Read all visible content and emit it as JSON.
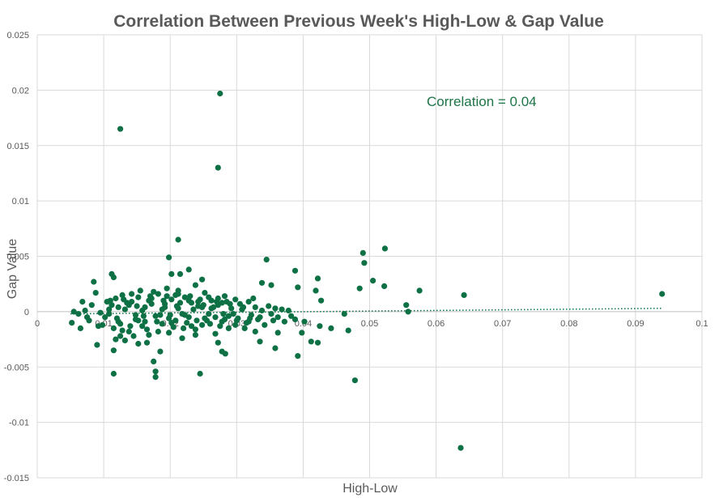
{
  "chart_data": {
    "type": "scatter",
    "title": "Correlation Between Previous Week's High-Low & Gap Value",
    "xlabel": "High-Low",
    "ylabel": "Gap Value",
    "xlim": [
      0,
      0.1
    ],
    "ylim": [
      -0.015,
      0.025
    ],
    "x_ticks": [
      "0",
      "0.01",
      "0.02",
      "0.03",
      "0.04",
      "0.05",
      "0.06",
      "0.07",
      "0.08",
      "0.09",
      "0.1"
    ],
    "y_ticks": [
      "0.025",
      "0.02",
      "0.015",
      "0.01",
      "0.005",
      "0",
      "-0.005",
      "-0.01",
      "-0.015"
    ],
    "annotation": "Correlation = 0.04",
    "marker_color": "#0e7145",
    "trendline": {
      "style": "dotted",
      "x": [
        0.005,
        0.094
      ],
      "y": [
        -0.0002,
        0.0003
      ]
    },
    "series": [
      {
        "name": "Gap Value",
        "points": [
          [
            0.0125,
            0.0165
          ],
          [
            0.0275,
            0.0197
          ],
          [
            0.0272,
            0.013
          ],
          [
            0.0212,
            0.0065
          ],
          [
            0.0198,
            0.0049
          ],
          [
            0.0345,
            0.0047
          ],
          [
            0.0523,
            0.0057
          ],
          [
            0.049,
            0.0053
          ],
          [
            0.0492,
            0.0044
          ],
          [
            0.0505,
            0.0028
          ],
          [
            0.0485,
            0.0021
          ],
          [
            0.0522,
            0.0023
          ],
          [
            0.0575,
            0.0019
          ],
          [
            0.0642,
            0.0015
          ],
          [
            0.094,
            0.0016
          ],
          [
            0.0555,
            0.0006
          ],
          [
            0.0558,
            0.0
          ],
          [
            0.0462,
            -0.0002
          ],
          [
            0.0468,
            -0.0017
          ],
          [
            0.0478,
            -0.0062
          ],
          [
            0.0637,
            -0.0123
          ],
          [
            0.0392,
            -0.004
          ],
          [
            0.0388,
            0.0037
          ],
          [
            0.0392,
            0.0022
          ],
          [
            0.0422,
            0.003
          ],
          [
            0.0419,
            0.0019
          ],
          [
            0.0427,
            0.001
          ],
          [
            0.0402,
            -0.0009
          ],
          [
            0.0425,
            -0.0013
          ],
          [
            0.0412,
            -0.0027
          ],
          [
            0.0422,
            -0.0028
          ],
          [
            0.0442,
            -0.0015
          ],
          [
            0.0398,
            -0.0019
          ],
          [
            0.0388,
            -0.0007
          ],
          [
            0.0338,
            0.0026
          ],
          [
            0.0352,
            0.0024
          ],
          [
            0.0355,
            -0.0008
          ],
          [
            0.0362,
            -0.0019
          ],
          [
            0.0358,
            -0.0033
          ],
          [
            0.0328,
            -0.0018
          ],
          [
            0.0335,
            -0.0027
          ],
          [
            0.0318,
            -0.0009
          ],
          [
            0.0298,
            -0.0012
          ],
          [
            0.0283,
            -0.0038
          ],
          [
            0.0278,
            -0.0036
          ],
          [
            0.0272,
            -0.0028
          ],
          [
            0.0245,
            -0.0056
          ],
          [
            0.0238,
            0.0024
          ],
          [
            0.0248,
            0.0029
          ],
          [
            0.0228,
            0.0038
          ],
          [
            0.0202,
            0.0034
          ],
          [
            0.0215,
            0.0034
          ],
          [
            0.0212,
            0.0019
          ],
          [
            0.0195,
            0.0021
          ],
          [
            0.0118,
            -0.0025
          ],
          [
            0.0115,
            -0.0035
          ],
          [
            0.0115,
            -0.0056
          ],
          [
            0.0175,
            -0.0045
          ],
          [
            0.0178,
            -0.0054
          ],
          [
            0.0178,
            -0.0059
          ],
          [
            0.0185,
            -0.0036
          ],
          [
            0.0165,
            -0.0028
          ],
          [
            0.0152,
            -0.0029
          ],
          [
            0.0125,
            -0.0022
          ],
          [
            0.0115,
            -0.0015
          ],
          [
            0.0112,
            0.0034
          ],
          [
            0.0115,
            0.0031
          ],
          [
            0.0085,
            0.0027
          ],
          [
            0.0088,
            0.0017
          ],
          [
            0.0065,
            -0.0015
          ],
          [
            0.0055,
            0.0
          ],
          [
            0.0052,
            -0.001
          ],
          [
            0.0062,
            -0.0002
          ],
          [
            0.0072,
            0.0001
          ],
          [
            0.0092,
            -0.0013
          ],
          [
            0.009,
            -0.003
          ],
          [
            0.0105,
            0.0009
          ],
          [
            0.0098,
            -0.0012
          ],
          [
            0.0108,
            0.0002
          ],
          [
            0.0102,
            -0.0005
          ],
          [
            0.0112,
            0.0006
          ],
          [
            0.0122,
            -0.0009
          ],
          [
            0.0128,
            0.0015
          ],
          [
            0.0132,
            0.0002
          ],
          [
            0.0138,
            -0.0018
          ],
          [
            0.0142,
            0.0009
          ],
          [
            0.0148,
            -0.0007
          ],
          [
            0.0155,
            0.0019
          ],
          [
            0.0158,
            -0.0013
          ],
          [
            0.0162,
            0.0004
          ],
          [
            0.0168,
            -0.0021
          ],
          [
            0.0172,
            0.0012
          ],
          [
            0.0178,
            -0.0004
          ],
          [
            0.0182,
            0.0016
          ],
          [
            0.0188,
            -0.0011
          ],
          [
            0.0192,
            0.0007
          ],
          [
            0.0198,
            -0.0019
          ],
          [
            0.0202,
            0.0011
          ],
          [
            0.0208,
            -0.0008
          ],
          [
            0.0212,
            0.0003
          ],
          [
            0.0218,
            -0.0024
          ],
          [
            0.0222,
            0.0013
          ],
          [
            0.0228,
            -0.0005
          ],
          [
            0.0232,
            0.0008
          ],
          [
            0.0238,
            -0.0016
          ],
          [
            0.0242,
            0.0005
          ],
          [
            0.0248,
            -0.0012
          ],
          [
            0.0252,
            0.0017
          ],
          [
            0.0258,
            -0.0002
          ],
          [
            0.0262,
            0.001
          ],
          [
            0.0268,
            -0.002
          ],
          [
            0.0272,
            0.0006
          ],
          [
            0.0278,
            -0.0009
          ],
          [
            0.0282,
            0.0014
          ],
          [
            0.0288,
            -0.0004
          ],
          [
            0.0292,
            0.0003
          ],
          [
            0.0298,
            0.0011
          ],
          [
            0.0302,
            -0.0006
          ],
          [
            0.0308,
            0.0002
          ],
          [
            0.0312,
            -0.0015
          ],
          [
            0.0318,
            0.0009
          ],
          [
            0.0322,
            -0.0003
          ],
          [
            0.0328,
            0.0004
          ],
          [
            0.0332,
            -0.0007
          ],
          [
            0.0338,
            0.0001
          ],
          [
            0.0342,
            -0.0012
          ],
          [
            0.0348,
            0.0005
          ],
          [
            0.0352,
            -0.0002
          ],
          [
            0.0358,
            0.0003
          ],
          [
            0.0362,
            -0.0005
          ],
          [
            0.0368,
            0.0002
          ],
          [
            0.0372,
            -0.0009
          ],
          [
            0.0378,
            0.0001
          ],
          [
            0.0382,
            -0.0004
          ],
          [
            0.0108,
            -0.0002
          ],
          [
            0.0118,
            0.0012
          ],
          [
            0.0125,
            -0.0011
          ],
          [
            0.0135,
            0.0008
          ],
          [
            0.0145,
            -0.0022
          ],
          [
            0.0152,
            0.0013
          ],
          [
            0.0158,
            0.0001
          ],
          [
            0.0165,
            -0.0016
          ],
          [
            0.0172,
            0.0007
          ],
          [
            0.0185,
            -0.0003
          ],
          [
            0.0195,
            0.0014
          ],
          [
            0.0205,
            -0.0014
          ],
          [
            0.0215,
            0.0008
          ],
          [
            0.0225,
            -0.001
          ],
          [
            0.0235,
            0.0002
          ],
          [
            0.0245,
            0.0011
          ],
          [
            0.0255,
            -0.0008
          ],
          [
            0.0265,
            0.0004
          ],
          [
            0.0275,
            -0.0013
          ],
          [
            0.0285,
            0.0009
          ],
          [
            0.0295,
            -0.0002
          ],
          [
            0.0305,
            0.0007
          ],
          [
            0.0315,
            -0.001
          ],
          [
            0.0325,
            0.0012
          ],
          [
            0.0335,
            -0.0005
          ],
          [
            0.0122,
            0.0004
          ],
          [
            0.0132,
            -0.0026
          ],
          [
            0.0142,
            0.0016
          ],
          [
            0.0148,
            -0.0003
          ],
          [
            0.0162,
            -0.0009
          ],
          [
            0.0175,
            0.0018
          ],
          [
            0.0188,
            0.0002
          ],
          [
            0.0198,
            -0.0006
          ],
          [
            0.0208,
            0.0015
          ],
          [
            0.0218,
            -0.0002
          ],
          [
            0.0228,
            0.001
          ],
          [
            0.0238,
            -0.0021
          ],
          [
            0.0248,
            0.0004
          ],
          [
            0.0258,
            0.0013
          ],
          [
            0.0268,
            -0.0005
          ],
          [
            0.0278,
            0.0008
          ],
          [
            0.0288,
            -0.0015
          ],
          [
            0.0128,
            -0.0017
          ],
          [
            0.0138,
            0.0006
          ],
          [
            0.0152,
            -0.0008
          ],
          [
            0.0168,
            0.001
          ],
          [
            0.0182,
            -0.0018
          ],
          [
            0.0192,
            0.0004
          ],
          [
            0.0202,
            -0.001
          ],
          [
            0.0212,
            0.0016
          ],
          [
            0.0222,
            -0.0003
          ],
          [
            0.0232,
            -0.0013
          ],
          [
            0.0242,
            0.0009
          ],
          [
            0.0252,
            -0.0006
          ],
          [
            0.0262,
            0.0003
          ],
          [
            0.0272,
            0.0012
          ],
          [
            0.0282,
            -0.0007
          ],
          [
            0.011,
            0.001
          ],
          [
            0.012,
            -0.0006
          ],
          [
            0.013,
            0.0011
          ],
          [
            0.014,
            -0.0013
          ],
          [
            0.015,
            0.0005
          ],
          [
            0.016,
            -0.0004
          ],
          [
            0.017,
            0.0014
          ],
          [
            0.018,
            -0.0009
          ],
          [
            0.019,
            0.001
          ],
          [
            0.02,
            -0.0003
          ],
          [
            0.021,
            0.0005
          ],
          [
            0.022,
            -0.0015
          ],
          [
            0.023,
            0.0014
          ],
          [
            0.024,
            -0.0008
          ],
          [
            0.025,
            0.0006
          ],
          [
            0.026,
            -0.0011
          ],
          [
            0.027,
            0.0009
          ],
          [
            0.028,
            -0.0002
          ],
          [
            0.029,
            0.0007
          ],
          [
            0.03,
            -0.0008
          ],
          [
            0.031,
            0.0004
          ],
          [
            0.032,
            -0.0006
          ],
          [
            0.0078,
            -0.0008
          ],
          [
            0.0082,
            0.0006
          ],
          [
            0.0095,
            -0.0001
          ],
          [
            0.0068,
            0.0009
          ],
          [
            0.0075,
            -0.0005
          ]
        ]
      }
    ]
  }
}
